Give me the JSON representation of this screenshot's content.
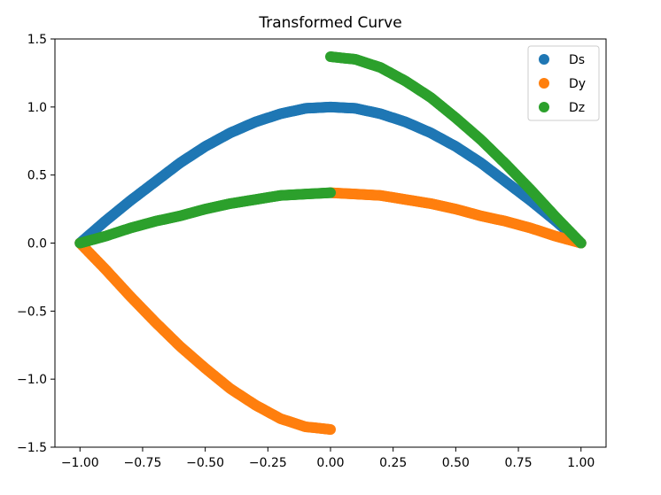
{
  "chart_data": {
    "type": "scatter",
    "title": "Transformed Curve",
    "xlabel": "",
    "ylabel": "",
    "xlim": [
      -1.1,
      1.1
    ],
    "ylim": [
      -1.5,
      1.5
    ],
    "x_ticks": [
      -1.0,
      -0.75,
      -0.5,
      -0.25,
      0.0,
      0.25,
      0.5,
      0.75,
      1.0
    ],
    "x_tick_labels": [
      "−1.00",
      "−0.75",
      "−0.50",
      "−0.25",
      "0.00",
      "0.25",
      "0.50",
      "0.75",
      "1.00"
    ],
    "y_ticks": [
      -1.5,
      -1.0,
      -0.5,
      0.0,
      0.5,
      1.0,
      1.5
    ],
    "y_tick_labels": [
      "−1.5",
      "−1.0",
      "−0.5",
      "0.0",
      "0.5",
      "1.0",
      "1.5"
    ],
    "grid": false,
    "legend_position": "top-right",
    "series": [
      {
        "name": "Ds",
        "color": "#1f77b4",
        "segments": [
          {
            "x": [
              -1.0,
              -0.9,
              -0.8,
              -0.7,
              -0.6,
              -0.5,
              -0.4,
              -0.3,
              -0.2,
              -0.1,
              0.0,
              0.1,
              0.2,
              0.3,
              0.4,
              0.5,
              0.6,
              0.7,
              0.8,
              0.9,
              1.0
            ],
            "y": [
              0.0,
              0.16,
              0.31,
              0.45,
              0.59,
              0.71,
              0.81,
              0.89,
              0.95,
              0.99,
              1.0,
              0.99,
              0.95,
              0.89,
              0.81,
              0.71,
              0.59,
              0.45,
              0.31,
              0.16,
              0.0
            ]
          }
        ]
      },
      {
        "name": "Dy",
        "color": "#ff7f0e",
        "segments": [
          {
            "x": [
              -1.0,
              -0.9,
              -0.8,
              -0.7,
              -0.6,
              -0.5,
              -0.4,
              -0.3,
              -0.2,
              -0.1,
              0.0
            ],
            "y": [
              0.0,
              -0.19,
              -0.39,
              -0.58,
              -0.76,
              -0.92,
              -1.07,
              -1.19,
              -1.29,
              -1.35,
              -1.37
            ]
          },
          {
            "x": [
              0.0,
              0.1,
              0.2,
              0.3,
              0.4,
              0.5,
              0.6,
              0.7,
              0.8,
              0.9,
              1.0
            ],
            "y": [
              0.37,
              0.36,
              0.35,
              0.32,
              0.29,
              0.25,
              0.2,
              0.16,
              0.11,
              0.05,
              0.0
            ]
          }
        ]
      },
      {
        "name": "Dz",
        "color": "#2ca02c",
        "segments": [
          {
            "x": [
              -1.0,
              -0.9,
              -0.8,
              -0.7,
              -0.6,
              -0.5,
              -0.4,
              -0.3,
              -0.2,
              -0.1,
              0.0
            ],
            "y": [
              0.0,
              0.05,
              0.11,
              0.16,
              0.2,
              0.25,
              0.29,
              0.32,
              0.35,
              0.36,
              0.37
            ]
          },
          {
            "x": [
              0.0,
              0.1,
              0.2,
              0.3,
              0.4,
              0.5,
              0.6,
              0.7,
              0.8,
              0.9,
              1.0
            ],
            "y": [
              1.37,
              1.35,
              1.29,
              1.19,
              1.07,
              0.92,
              0.76,
              0.58,
              0.39,
              0.19,
              0.0
            ]
          }
        ]
      }
    ]
  }
}
